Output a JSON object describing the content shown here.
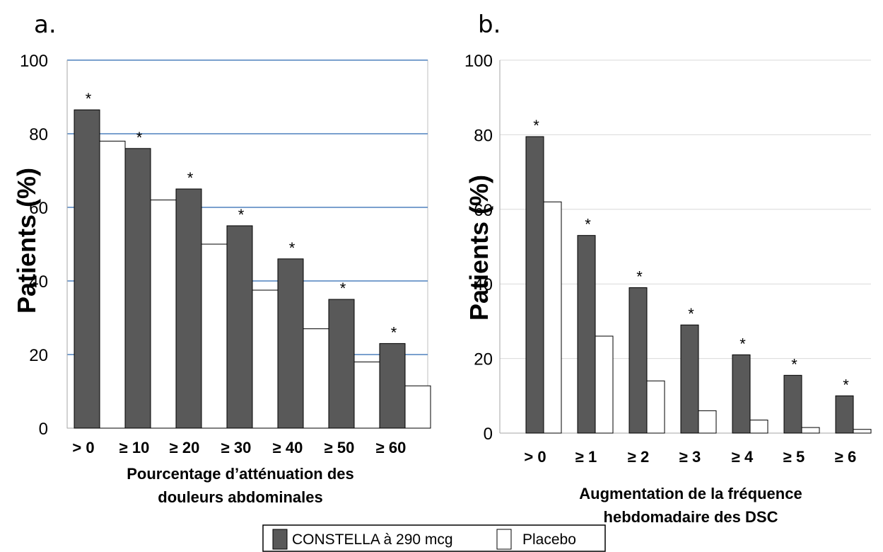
{
  "chart_data": [
    {
      "panel": "a.",
      "type": "bar",
      "categories": [
        "> 0",
        "≥ 10",
        "≥ 20",
        "≥ 30",
        "≥ 40",
        "≥ 50",
        "≥ 60"
      ],
      "series": [
        {
          "name": "CONSTELLA à 290 mcg",
          "values": [
            86.5,
            76,
            65,
            55,
            46,
            35,
            23
          ],
          "color": "#595959"
        },
        {
          "name": "Placebo",
          "values": [
            78,
            62,
            50,
            37.5,
            27,
            18,
            11.5
          ],
          "color": "#ffffff"
        }
      ],
      "annotations": [
        "*",
        "*",
        "*",
        "*",
        "*",
        "*",
        "*"
      ],
      "ylabel": "Patients (%)",
      "xlabel": [
        "Pourcentage d’atténuation des",
        "douleurs abdominales"
      ],
      "ylim": [
        0,
        100
      ],
      "yticks": [
        "0",
        "20",
        "40",
        "60",
        "80",
        "100"
      ],
      "gridline_color": "#4f81bd",
      "grid": true
    },
    {
      "panel": "b.",
      "type": "bar",
      "categories": [
        "> 0",
        "≥ 1",
        "≥ 2",
        "≥ 3",
        "≥ 4",
        "≥ 5",
        "≥ 6"
      ],
      "series": [
        {
          "name": "CONSTELLA à 290 mcg",
          "values": [
            79.5,
            53,
            39,
            29,
            21,
            15.5,
            10
          ],
          "color": "#595959"
        },
        {
          "name": "Placebo",
          "values": [
            62,
            26,
            14,
            6,
            3.5,
            1.5,
            1
          ],
          "color": "#ffffff"
        }
      ],
      "annotations": [
        "*",
        "*",
        "*",
        "*",
        "*",
        "*",
        "*"
      ],
      "ylabel": "Patients (%)",
      "xlabel": [
        "Augmentation de la fréquence",
        "hebdomadaire des DSC"
      ],
      "ylim": [
        0,
        100
      ],
      "yticks": [
        "0",
        "20",
        "40",
        "60",
        "80",
        "100"
      ],
      "gridline_color": "#d9d9d9",
      "grid": true
    }
  ],
  "legend": {
    "placement": "bottom-center",
    "items": [
      {
        "label": "CONSTELLA à 290 mcg",
        "color": "#595959"
      },
      {
        "label": "Placebo",
        "color": "#ffffff"
      }
    ]
  }
}
